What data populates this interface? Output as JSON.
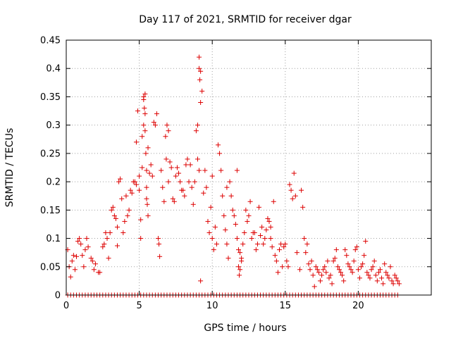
{
  "chart_data": {
    "type": "scatter",
    "title": "Day 117 of 2021, SRMTID for receiver dgar",
    "xlabel": "GPS time / hours",
    "ylabel": "SRMTID / TECUs",
    "xlim": [
      0,
      25
    ],
    "ylim": [
      0,
      0.45
    ],
    "xticks": [
      0,
      5,
      10,
      15,
      20
    ],
    "yticks": [
      0,
      0.05,
      0.1,
      0.15,
      0.2,
      0.25,
      0.3,
      0.35,
      0.4,
      0.45
    ],
    "xtick_labels": [
      "0",
      "5",
      "10",
      "15",
      "20"
    ],
    "ytick_labels": [
      "0",
      "0.05",
      "0.1",
      "0.15",
      "0.2",
      "0.25",
      "0.3",
      "0.35",
      "0.4",
      "0.45"
    ],
    "grid": true,
    "marker": "+",
    "series": [
      {
        "name": "SRMTID",
        "color": "#dd0000",
        "points": [
          [
            0.1,
            0.08
          ],
          [
            0.2,
            0.05
          ],
          [
            0.3,
            0.032
          ],
          [
            0.4,
            0.06
          ],
          [
            0.5,
            0.07
          ],
          [
            0.6,
            0.045
          ],
          [
            0.7,
            0.068
          ],
          [
            0.8,
            0.095
          ],
          [
            0.9,
            0.1
          ],
          [
            1.0,
            0.09
          ],
          [
            1.1,
            0.07
          ],
          [
            1.2,
            0.05
          ],
          [
            1.3,
            0.08
          ],
          [
            1.4,
            0.1
          ],
          [
            1.5,
            0.085
          ],
          [
            1.7,
            0.065
          ],
          [
            1.8,
            0.06
          ],
          [
            1.9,
            0.045
          ],
          [
            2.0,
            0.055
          ],
          [
            2.2,
            0.04
          ],
          [
            2.3,
            0.04
          ],
          [
            2.5,
            0.085
          ],
          [
            2.6,
            0.09
          ],
          [
            2.7,
            0.11
          ],
          [
            2.8,
            0.1
          ],
          [
            2.9,
            0.065
          ],
          [
            3.0,
            0.11
          ],
          [
            3.1,
            0.15
          ],
          [
            3.2,
            0.155
          ],
          [
            3.3,
            0.14
          ],
          [
            3.4,
            0.135
          ],
          [
            3.5,
            0.12
          ],
          [
            3.5,
            0.087
          ],
          [
            3.6,
            0.2
          ],
          [
            3.7,
            0.205
          ],
          [
            3.8,
            0.17
          ],
          [
            3.9,
            0.11
          ],
          [
            4.0,
            0.13
          ],
          [
            4.1,
            0.175
          ],
          [
            4.2,
            0.14
          ],
          [
            4.3,
            0.15
          ],
          [
            4.4,
            0.185
          ],
          [
            4.5,
            0.18
          ],
          [
            4.6,
            0.2
          ],
          [
            4.7,
            0.2
          ],
          [
            4.8,
            0.27
          ],
          [
            4.8,
            0.195
          ],
          [
            4.9,
            0.325
          ],
          [
            5.0,
            0.21
          ],
          [
            5.0,
            0.185
          ],
          [
            5.1,
            0.1
          ],
          [
            5.1,
            0.133
          ],
          [
            5.2,
            0.28
          ],
          [
            5.2,
            0.225
          ],
          [
            5.3,
            0.35
          ],
          [
            5.3,
            0.345
          ],
          [
            5.3,
            0.3
          ],
          [
            5.35,
            0.33
          ],
          [
            5.4,
            0.355
          ],
          [
            5.4,
            0.32
          ],
          [
            5.4,
            0.29
          ],
          [
            5.45,
            0.25
          ],
          [
            5.5,
            0.22
          ],
          [
            5.5,
            0.19
          ],
          [
            5.5,
            0.17
          ],
          [
            5.55,
            0.16
          ],
          [
            5.6,
            0.14
          ],
          [
            5.6,
            0.26
          ],
          [
            5.7,
            0.215
          ],
          [
            5.8,
            0.23
          ],
          [
            5.9,
            0.21
          ],
          [
            6.0,
            0.305
          ],
          [
            6.1,
            0.3
          ],
          [
            6.2,
            0.32
          ],
          [
            6.3,
            0.1
          ],
          [
            6.35,
            0.09
          ],
          [
            6.4,
            0.068
          ],
          [
            6.5,
            0.22
          ],
          [
            6.6,
            0.19
          ],
          [
            6.7,
            0.165
          ],
          [
            6.8,
            0.28
          ],
          [
            6.85,
            0.24
          ],
          [
            6.9,
            0.3
          ],
          [
            7.0,
            0.29
          ],
          [
            7.0,
            0.2
          ],
          [
            7.1,
            0.235
          ],
          [
            7.2,
            0.225
          ],
          [
            7.3,
            0.17
          ],
          [
            7.4,
            0.165
          ],
          [
            7.5,
            0.21
          ],
          [
            7.6,
            0.225
          ],
          [
            7.7,
            0.215
          ],
          [
            7.8,
            0.2
          ],
          [
            7.9,
            0.185
          ],
          [
            8.0,
            0.185
          ],
          [
            8.1,
            0.175
          ],
          [
            8.2,
            0.23
          ],
          [
            8.3,
            0.24
          ],
          [
            8.4,
            0.2
          ],
          [
            8.5,
            0.23
          ],
          [
            8.6,
            0.19
          ],
          [
            8.7,
            0.16
          ],
          [
            8.8,
            0.2
          ],
          [
            8.9,
            0.29
          ],
          [
            9.0,
            0.24
          ],
          [
            9.0,
            0.3
          ],
          [
            9.1,
            0.4
          ],
          [
            9.1,
            0.42
          ],
          [
            9.15,
            0.38
          ],
          [
            9.2,
            0.395
          ],
          [
            9.2,
            0.34
          ],
          [
            9.3,
            0.36
          ],
          [
            9.1,
            0.22
          ],
          [
            9.2,
            0.025
          ],
          [
            9.4,
            0.18
          ],
          [
            9.5,
            0.22
          ],
          [
            9.6,
            0.19
          ],
          [
            9.7,
            0.13
          ],
          [
            9.8,
            0.11
          ],
          [
            9.9,
            0.155
          ],
          [
            10.0,
            0.21
          ],
          [
            10.0,
            0.1
          ],
          [
            10.1,
            0.08
          ],
          [
            10.2,
            0.12
          ],
          [
            10.3,
            0.09
          ],
          [
            10.4,
            0.265
          ],
          [
            10.5,
            0.25
          ],
          [
            10.6,
            0.22
          ],
          [
            10.7,
            0.175
          ],
          [
            10.8,
            0.14
          ],
          [
            10.9,
            0.115
          ],
          [
            11.0,
            0.19
          ],
          [
            11.0,
            0.09
          ],
          [
            11.1,
            0.065
          ],
          [
            11.2,
            0.2
          ],
          [
            11.3,
            0.175
          ],
          [
            11.4,
            0.15
          ],
          [
            11.5,
            0.14
          ],
          [
            11.6,
            0.125
          ],
          [
            11.7,
            0.22
          ],
          [
            11.7,
            0.1
          ],
          [
            11.8,
            0.08
          ],
          [
            11.8,
            0.05
          ],
          [
            11.85,
            0.035
          ],
          [
            11.9,
            0.045
          ],
          [
            11.9,
            0.075
          ],
          [
            12.0,
            0.065
          ],
          [
            12.0,
            0.06
          ],
          [
            12.1,
            0.09
          ],
          [
            12.2,
            0.11
          ],
          [
            12.3,
            0.15
          ],
          [
            12.4,
            0.13
          ],
          [
            12.5,
            0.14
          ],
          [
            12.6,
            0.165
          ],
          [
            12.7,
            0.1
          ],
          [
            12.8,
            0.11
          ],
          [
            12.9,
            0.11
          ],
          [
            13.0,
            0.08
          ],
          [
            13.1,
            0.09
          ],
          [
            13.2,
            0.155
          ],
          [
            13.3,
            0.105
          ],
          [
            13.4,
            0.12
          ],
          [
            13.5,
            0.09
          ],
          [
            13.6,
            0.1
          ],
          [
            13.7,
            0.115
          ],
          [
            13.8,
            0.135
          ],
          [
            13.9,
            0.13
          ],
          [
            14.0,
            0.12
          ],
          [
            14.0,
            0.1
          ],
          [
            14.1,
            0.085
          ],
          [
            14.2,
            0.165
          ],
          [
            14.3,
            0.07
          ],
          [
            14.4,
            0.06
          ],
          [
            14.5,
            0.04
          ],
          [
            14.6,
            0.08
          ],
          [
            14.7,
            0.09
          ],
          [
            14.8,
            0.05
          ],
          [
            14.9,
            0.085
          ],
          [
            15.0,
            0.09
          ],
          [
            15.1,
            0.06
          ],
          [
            15.2,
            0.05
          ],
          [
            15.3,
            0.195
          ],
          [
            15.4,
            0.185
          ],
          [
            15.5,
            0.17
          ],
          [
            15.6,
            0.215
          ],
          [
            15.7,
            0.175
          ],
          [
            15.8,
            0.075
          ],
          [
            16.0,
            0.045
          ],
          [
            16.1,
            0.185
          ],
          [
            16.2,
            0.155
          ],
          [
            16.3,
            0.1
          ],
          [
            16.4,
            0.075
          ],
          [
            16.5,
            0.09
          ],
          [
            16.6,
            0.055
          ],
          [
            16.7,
            0.045
          ],
          [
            16.8,
            0.06
          ],
          [
            16.9,
            0.035
          ],
          [
            17.0,
            0.015
          ],
          [
            17.1,
            0.05
          ],
          [
            17.2,
            0.045
          ],
          [
            17.3,
            0.04
          ],
          [
            17.4,
            0.025
          ],
          [
            17.5,
            0.035
          ],
          [
            17.6,
            0.045
          ],
          [
            17.7,
            0.05
          ],
          [
            17.8,
            0.04
          ],
          [
            17.9,
            0.06
          ],
          [
            18.0,
            0.03
          ],
          [
            18.1,
            0.035
          ],
          [
            18.2,
            0.02
          ],
          [
            18.3,
            0.06
          ],
          [
            18.4,
            0.065
          ],
          [
            18.5,
            0.08
          ],
          [
            18.6,
            0.05
          ],
          [
            18.7,
            0.045
          ],
          [
            18.8,
            0.04
          ],
          [
            18.9,
            0.035
          ],
          [
            19.0,
            0.025
          ],
          [
            19.1,
            0.08
          ],
          [
            19.2,
            0.07
          ],
          [
            19.3,
            0.055
          ],
          [
            19.4,
            0.05
          ],
          [
            19.5,
            0.045
          ],
          [
            19.6,
            0.04
          ],
          [
            19.7,
            0.06
          ],
          [
            19.8,
            0.08
          ],
          [
            19.9,
            0.085
          ],
          [
            20.0,
            0.045
          ],
          [
            20.1,
            0.03
          ],
          [
            20.2,
            0.05
          ],
          [
            20.3,
            0.055
          ],
          [
            20.4,
            0.07
          ],
          [
            20.5,
            0.095
          ],
          [
            20.6,
            0.04
          ],
          [
            20.7,
            0.035
          ],
          [
            20.8,
            0.03
          ],
          [
            20.9,
            0.045
          ],
          [
            21.0,
            0.05
          ],
          [
            21.1,
            0.06
          ],
          [
            21.2,
            0.035
          ],
          [
            21.3,
            0.025
          ],
          [
            21.4,
            0.04
          ],
          [
            21.5,
            0.045
          ],
          [
            21.6,
            0.03
          ],
          [
            21.7,
            0.02
          ],
          [
            21.8,
            0.055
          ],
          [
            21.9,
            0.04
          ],
          [
            22.0,
            0.035
          ],
          [
            22.1,
            0.03
          ],
          [
            22.2,
            0.05
          ],
          [
            22.3,
            0.025
          ],
          [
            22.4,
            0.02
          ],
          [
            22.5,
            0.035
          ],
          [
            22.6,
            0.03
          ],
          [
            22.7,
            0.025
          ],
          [
            22.8,
            0.02
          ]
        ]
      },
      {
        "name": "SRMTID zero baseline",
        "color": "#dd0000",
        "x_range": [
          0.1,
          22.8
        ],
        "value": 0,
        "step": 0.2
      }
    ]
  }
}
